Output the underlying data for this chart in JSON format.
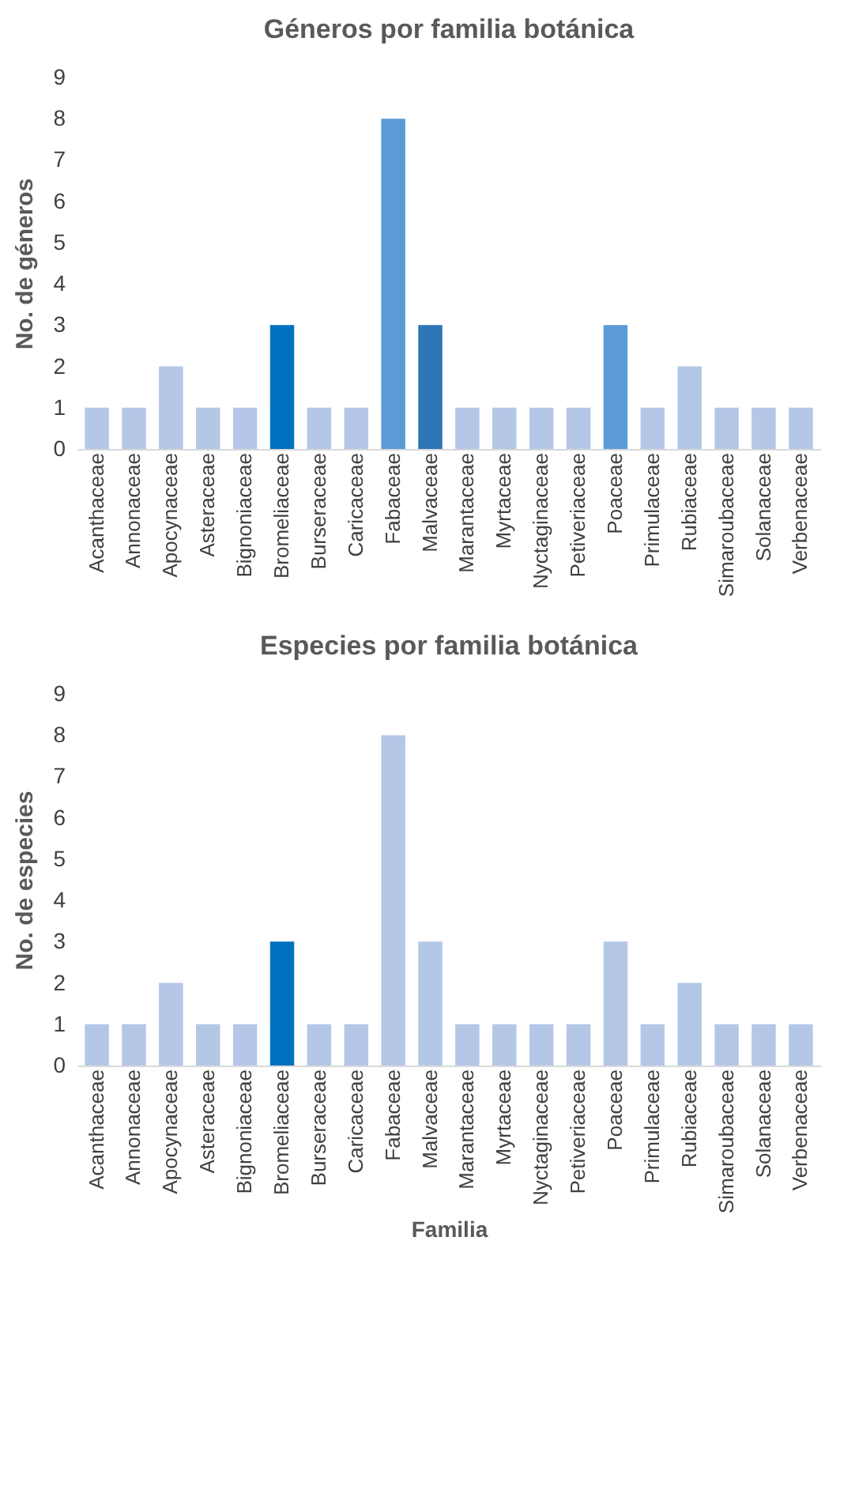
{
  "chart_data": [
    {
      "type": "bar",
      "title": "Géneros por familia botánica",
      "ylabel": "No. de géneros",
      "categories": [
        "Acanthaceae",
        "Annonaceae",
        "Apocynaceae",
        "Asteraceae",
        "Bignoniaceae",
        "Bromeliaceae",
        "Burseraceae",
        "Caricaceae",
        "Fabaceae",
        "Malvaceae",
        "Marantaceae",
        "Myrtaceae",
        "Nyctaginaceae",
        "Petiveriaceae",
        "Poaceae",
        "Primulaceae",
        "Rubiaceae",
        "Simaroubaceae",
        "Solanaceae",
        "Verbenaceae"
      ],
      "values": [
        1,
        1,
        2,
        1,
        1,
        3,
        1,
        1,
        8,
        3,
        1,
        1,
        1,
        1,
        3,
        1,
        2,
        1,
        1,
        1
      ],
      "colors": [
        "#b4c7e7",
        "#b4c7e7",
        "#b4c7e7",
        "#b4c7e7",
        "#b4c7e7",
        "#0070c0",
        "#b4c7e7",
        "#b4c7e7",
        "#5b9bd5",
        "#2e75b6",
        "#b4c7e7",
        "#b4c7e7",
        "#b4c7e7",
        "#b4c7e7",
        "#5b9bd5",
        "#b4c7e7",
        "#b4c7e7",
        "#b4c7e7",
        "#b4c7e7",
        "#b4c7e7"
      ],
      "ylim": [
        0,
        9
      ],
      "yticks": [
        0,
        1,
        2,
        3,
        4,
        5,
        6,
        7,
        8,
        9
      ],
      "grid": false
    },
    {
      "type": "bar",
      "title": "Especies por familia botánica",
      "ylabel": "No. de especies",
      "xlabel": "Familia",
      "categories": [
        "Acanthaceae",
        "Annonaceae",
        "Apocynaceae",
        "Asteraceae",
        "Bignoniaceae",
        "Bromeliaceae",
        "Burseraceae",
        "Caricaceae",
        "Fabaceae",
        "Malvaceae",
        "Marantaceae",
        "Myrtaceae",
        "Nyctaginaceae",
        "Petiveriaceae",
        "Poaceae",
        "Primulaceae",
        "Rubiaceae",
        "Simaroubaceae",
        "Solanaceae",
        "Verbenaceae"
      ],
      "values": [
        1,
        1,
        2,
        1,
        1,
        3,
        1,
        1,
        8,
        3,
        1,
        1,
        1,
        1,
        3,
        1,
        2,
        1,
        1,
        1
      ],
      "colors": [
        "#b4c7e7",
        "#b4c7e7",
        "#b4c7e7",
        "#b4c7e7",
        "#b4c7e7",
        "#0070c0",
        "#b4c7e7",
        "#b4c7e7",
        "#b4c7e7",
        "#b4c7e7",
        "#b4c7e7",
        "#b4c7e7",
        "#b4c7e7",
        "#b4c7e7",
        "#b4c7e7",
        "#b4c7e7",
        "#b4c7e7",
        "#b4c7e7",
        "#b4c7e7",
        "#b4c7e7"
      ],
      "ylim": [
        0,
        9
      ],
      "yticks": [
        0,
        1,
        2,
        3,
        4,
        5,
        6,
        7,
        8,
        9
      ],
      "grid": false
    }
  ]
}
